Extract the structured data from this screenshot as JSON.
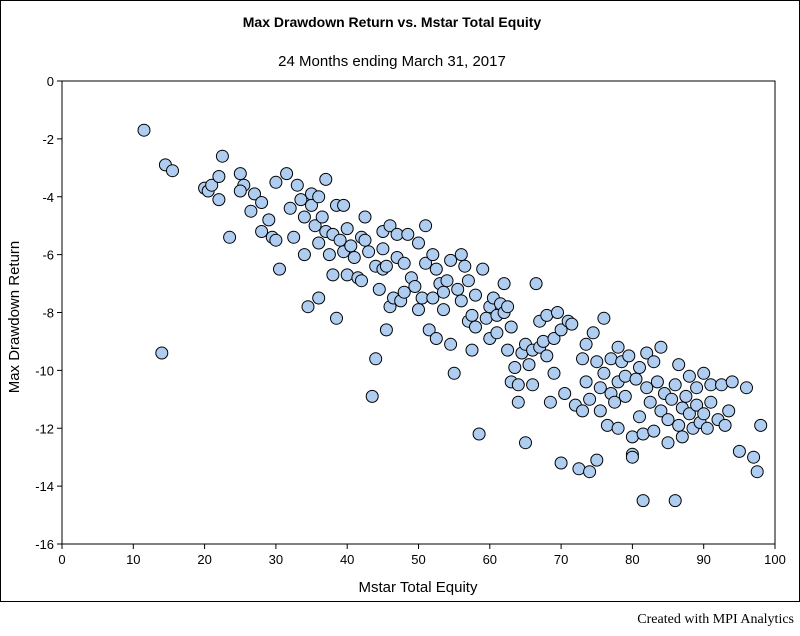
{
  "chart_data": {
    "type": "scatter",
    "title": "Max Drawdown Return vs. Mstar Total Equity",
    "subtitle": "24 Months ending March 31, 2017",
    "xlabel": "Mstar Total Equity",
    "ylabel": "Max Drawdown Return",
    "xlim": [
      0,
      100
    ],
    "ylim": [
      -16,
      0
    ],
    "xticks": [
      0,
      10,
      20,
      30,
      40,
      50,
      60,
      70,
      80,
      90,
      100
    ],
    "yticks": [
      0,
      -2,
      -4,
      -6,
      -8,
      -10,
      -12,
      -14,
      -16
    ],
    "grid": false,
    "legend": "none",
    "marker_fill": "#aecdf0",
    "marker_stroke": "#000000",
    "points": [
      [
        11.5,
        -1.7
      ],
      [
        14.5,
        -2.9
      ],
      [
        15.5,
        -3.1
      ],
      [
        14,
        -9.4
      ],
      [
        20,
        -3.7
      ],
      [
        20.5,
        -3.8
      ],
      [
        21,
        -3.6
      ],
      [
        22,
        -3.3
      ],
      [
        22.5,
        -2.6
      ],
      [
        22,
        -4.1
      ],
      [
        23.5,
        -5.4
      ],
      [
        25,
        -3.2
      ],
      [
        25.5,
        -3.6
      ],
      [
        25,
        -3.8
      ],
      [
        26.5,
        -4.5
      ],
      [
        27,
        -3.9
      ],
      [
        28,
        -4.2
      ],
      [
        28,
        -5.2
      ],
      [
        29,
        -4.8
      ],
      [
        29.5,
        -5.4
      ],
      [
        30,
        -3.5
      ],
      [
        30,
        -5.5
      ],
      [
        30.5,
        -6.5
      ],
      [
        31.5,
        -3.2
      ],
      [
        32,
        -4.4
      ],
      [
        32.5,
        -5.4
      ],
      [
        33,
        -3.6
      ],
      [
        33.5,
        -4.1
      ],
      [
        34,
        -4.7
      ],
      [
        34,
        -6.0
      ],
      [
        34.5,
        -7.8
      ],
      [
        35,
        -3.9
      ],
      [
        35,
        -4.3
      ],
      [
        35.5,
        -5.0
      ],
      [
        36,
        -4.0
      ],
      [
        36,
        -5.6
      ],
      [
        36,
        -7.5
      ],
      [
        36.5,
        -4.7
      ],
      [
        37,
        -3.4
      ],
      [
        37,
        -5.2
      ],
      [
        37.5,
        -6.0
      ],
      [
        38,
        -6.7
      ],
      [
        38,
        -5.3
      ],
      [
        38.5,
        -4.3
      ],
      [
        38.5,
        -8.2
      ],
      [
        39,
        -5.5
      ],
      [
        39.5,
        -4.3
      ],
      [
        39.5,
        -5.9
      ],
      [
        40,
        -5.1
      ],
      [
        40,
        -6.7
      ],
      [
        40.5,
        -5.7
      ],
      [
        41,
        -6.1
      ],
      [
        41.5,
        -6.8
      ],
      [
        42,
        -5.4
      ],
      [
        42,
        -6.9
      ],
      [
        42.5,
        -4.7
      ],
      [
        42.5,
        -5.5
      ],
      [
        43,
        -5.9
      ],
      [
        43.5,
        -10.9
      ],
      [
        44,
        -6.4
      ],
      [
        44,
        -9.6
      ],
      [
        44.5,
        -7.2
      ],
      [
        45,
        -5.2
      ],
      [
        45,
        -5.8
      ],
      [
        45,
        -6.5
      ],
      [
        45.5,
        -6.4
      ],
      [
        45.5,
        -8.6
      ],
      [
        46,
        -7.8
      ],
      [
        46,
        -5.0
      ],
      [
        46.5,
        -7.5
      ],
      [
        47,
        -6.1
      ],
      [
        47,
        -5.3
      ],
      [
        47.5,
        -7.6
      ],
      [
        48,
        -6.3
      ],
      [
        48,
        -7.3
      ],
      [
        48.5,
        -5.3
      ],
      [
        49,
        -6.8
      ],
      [
        49.5,
        -7.1
      ],
      [
        50,
        -5.6
      ],
      [
        50,
        -7.9
      ],
      [
        50.5,
        -7.5
      ],
      [
        51,
        -5.0
      ],
      [
        51,
        -6.3
      ],
      [
        51.5,
        -8.6
      ],
      [
        52,
        -6.0
      ],
      [
        52,
        -7.5
      ],
      [
        52.5,
        -6.5
      ],
      [
        52.5,
        -8.9
      ],
      [
        53,
        -7.0
      ],
      [
        53.5,
        -7.3
      ],
      [
        53.5,
        -7.9
      ],
      [
        54,
        -6.9
      ],
      [
        54.5,
        -6.2
      ],
      [
        54.5,
        -9.1
      ],
      [
        55,
        -10.1
      ],
      [
        55.5,
        -7.2
      ],
      [
        56,
        -6.0
      ],
      [
        56,
        -7.6
      ],
      [
        56.5,
        -6.4
      ],
      [
        57,
        -6.9
      ],
      [
        57,
        -8.3
      ],
      [
        57.5,
        -9.3
      ],
      [
        57.5,
        -8.1
      ],
      [
        58,
        -7.4
      ],
      [
        58,
        -8.5
      ],
      [
        58.5,
        -12.2
      ],
      [
        59,
        -6.5
      ],
      [
        59.5,
        -8.2
      ],
      [
        60,
        -7.8
      ],
      [
        60,
        -8.9
      ],
      [
        60.5,
        -7.5
      ],
      [
        61,
        -8.1
      ],
      [
        61,
        -8.7
      ],
      [
        61.5,
        -7.7
      ],
      [
        62,
        -7.0
      ],
      [
        62,
        -8.0
      ],
      [
        62.5,
        -7.8
      ],
      [
        62.5,
        -9.3
      ],
      [
        63,
        -8.5
      ],
      [
        63,
        -10.4
      ],
      [
        63.5,
        -9.9
      ],
      [
        64,
        -10.5
      ],
      [
        64,
        -11.1
      ],
      [
        64.5,
        -9.4
      ],
      [
        65,
        -9.1
      ],
      [
        65,
        -12.5
      ],
      [
        65.5,
        -9.8
      ],
      [
        66,
        -9.3
      ],
      [
        66,
        -10.5
      ],
      [
        66.5,
        -7.0
      ],
      [
        67,
        -8.3
      ],
      [
        67,
        -9.2
      ],
      [
        67.5,
        -9.0
      ],
      [
        68,
        -8.1
      ],
      [
        68,
        -9.5
      ],
      [
        68.5,
        -11.1
      ],
      [
        69,
        -8.9
      ],
      [
        69,
        -10.1
      ],
      [
        69.5,
        -8.0
      ],
      [
        70,
        -8.6
      ],
      [
        70,
        -13.2
      ],
      [
        70.5,
        -10.8
      ],
      [
        71,
        -8.3
      ],
      [
        71.5,
        -8.4
      ],
      [
        72,
        -11.2
      ],
      [
        72.5,
        -13.4
      ],
      [
        73,
        -9.6
      ],
      [
        73,
        -11.4
      ],
      [
        73.5,
        -9.1
      ],
      [
        73.5,
        -10.4
      ],
      [
        74,
        -13.5
      ],
      [
        74,
        -11.0
      ],
      [
        74.5,
        -8.7
      ],
      [
        75,
        -9.7
      ],
      [
        75,
        -13.1
      ],
      [
        75.5,
        -10.6
      ],
      [
        75.5,
        -11.4
      ],
      [
        76,
        -8.2
      ],
      [
        76,
        -10.1
      ],
      [
        76.5,
        -11.9
      ],
      [
        77,
        -9.6
      ],
      [
        77,
        -10.8
      ],
      [
        77.5,
        -11.1
      ],
      [
        78,
        -9.2
      ],
      [
        78,
        -10.4
      ],
      [
        78,
        -12.0
      ],
      [
        78.5,
        -9.7
      ],
      [
        79,
        -10.2
      ],
      [
        79,
        -10.9
      ],
      [
        79.5,
        -9.5
      ],
      [
        80,
        -12.3
      ],
      [
        80,
        -12.9
      ],
      [
        80,
        -13.0
      ],
      [
        80.5,
        -10.3
      ],
      [
        81,
        -9.9
      ],
      [
        81,
        -11.6
      ],
      [
        81.5,
        -14.5
      ],
      [
        81.5,
        -12.2
      ],
      [
        82,
        -10.6
      ],
      [
        82,
        -9.4
      ],
      [
        82.5,
        -11.1
      ],
      [
        83,
        -9.7
      ],
      [
        83,
        -12.1
      ],
      [
        83.5,
        -10.4
      ],
      [
        84,
        -9.2
      ],
      [
        84,
        -11.4
      ],
      [
        84.5,
        -10.8
      ],
      [
        85,
        -11.7
      ],
      [
        85,
        -12.5
      ],
      [
        85.5,
        -11.0
      ],
      [
        86,
        -14.5
      ],
      [
        86,
        -10.5
      ],
      [
        86.5,
        -9.8
      ],
      [
        86.5,
        -11.9
      ],
      [
        87,
        -11.3
      ],
      [
        87,
        -12.3
      ],
      [
        87.5,
        -10.9
      ],
      [
        88,
        -11.5
      ],
      [
        88,
        -10.2
      ],
      [
        88.5,
        -12.0
      ],
      [
        89,
        -11.2
      ],
      [
        89,
        -10.6
      ],
      [
        89.5,
        -11.8
      ],
      [
        90,
        -10.1
      ],
      [
        90,
        -11.5
      ],
      [
        90.5,
        -12.0
      ],
      [
        91,
        -10.5
      ],
      [
        91,
        -11.1
      ],
      [
        92,
        -11.7
      ],
      [
        92.5,
        -10.5
      ],
      [
        93,
        -11.9
      ],
      [
        93.5,
        -11.4
      ],
      [
        94,
        -10.4
      ],
      [
        95,
        -12.8
      ],
      [
        96,
        -10.6
      ],
      [
        97,
        -13.0
      ],
      [
        97.5,
        -13.5
      ],
      [
        98,
        -11.9
      ]
    ]
  },
  "footer": {
    "credit": "Created with MPI Analytics"
  }
}
